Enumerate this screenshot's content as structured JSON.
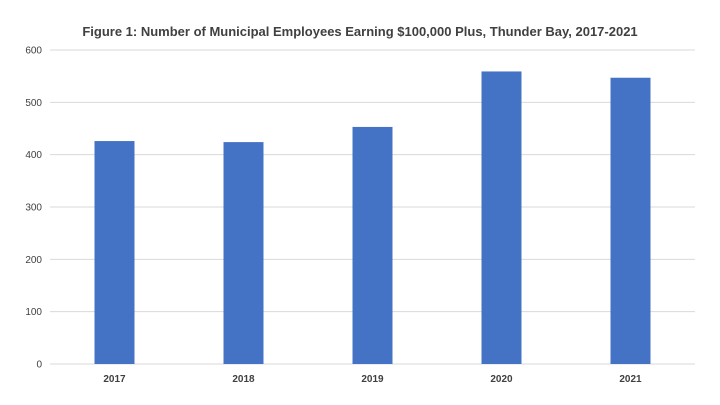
{
  "chart_data": {
    "type": "bar",
    "title": "Figure 1: Number of Municipal Employees Earning $100,000 Plus, Thunder Bay, 2017-2021",
    "xlabel": "",
    "ylabel": "",
    "categories": [
      "2017",
      "2018",
      "2019",
      "2020",
      "2021"
    ],
    "values": [
      426,
      424,
      453,
      559,
      547
    ],
    "ylim": [
      0,
      600
    ],
    "yticks": [
      0,
      100,
      200,
      300,
      400,
      500,
      600
    ],
    "grid": true,
    "legend": "none",
    "bar_color": "#4472C4",
    "grid_color": "#D9D9D9"
  }
}
